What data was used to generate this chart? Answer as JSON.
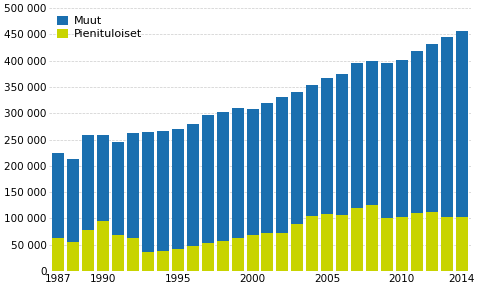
{
  "years": [
    1987,
    1988,
    1989,
    1990,
    1991,
    1992,
    1993,
    1994,
    1995,
    1996,
    1997,
    1998,
    1999,
    2000,
    2001,
    2002,
    2003,
    2004,
    2005,
    2006,
    2007,
    2008,
    2009,
    2010,
    2011,
    2012,
    2013,
    2014
  ],
  "pienituloiset": [
    63000,
    55000,
    78000,
    95000,
    68000,
    63000,
    37000,
    38000,
    42000,
    48000,
    53000,
    58000,
    62000,
    68000,
    72000,
    73000,
    90000,
    105000,
    108000,
    107000,
    120000,
    125000,
    100000,
    103000,
    110000,
    112000,
    103000,
    102000
  ],
  "muut": [
    162000,
    158000,
    180000,
    163000,
    177000,
    200000,
    228000,
    228000,
    228000,
    232000,
    243000,
    245000,
    248000,
    240000,
    248000,
    258000,
    250000,
    248000,
    260000,
    268000,
    275000,
    275000,
    295000,
    298000,
    308000,
    320000,
    342000,
    355000
  ],
  "color_pienituloiset": "#c8d400",
  "color_muut": "#1a6faf",
  "ylim": [
    0,
    500000
  ],
  "yticks": [
    0,
    50000,
    100000,
    150000,
    200000,
    250000,
    300000,
    350000,
    400000,
    450000,
    500000
  ],
  "legend_muut": "Muut",
  "legend_pienituloiset": "Pienituloiset",
  "background_color": "#ffffff",
  "grid_color": "#cccccc",
  "bar_width": 0.8
}
